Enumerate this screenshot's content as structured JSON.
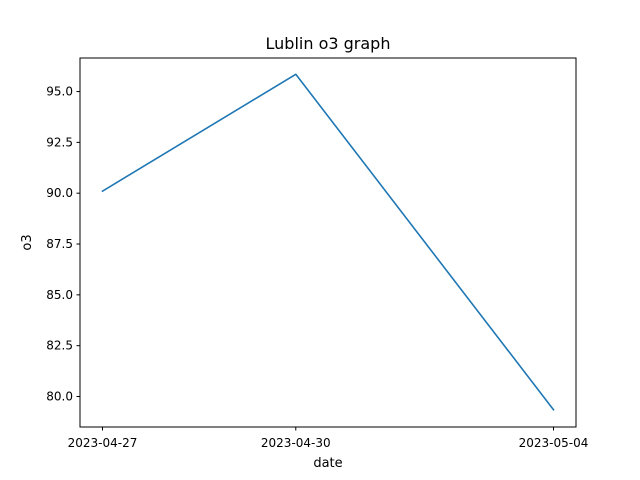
{
  "chart_data": {
    "type": "line",
    "title": "Lublin o3 graph",
    "xlabel": "date",
    "ylabel": "o3",
    "x": [
      "2023-04-27",
      "2023-04-30",
      "2023-05-04"
    ],
    "series": [
      {
        "values": [
          90.1,
          95.85,
          79.35
        ],
        "color": "#1f77b4"
      }
    ],
    "xticks": [
      "2023-04-27",
      "2023-04-30",
      "2023-05-04"
    ],
    "yticks": [
      80.0,
      82.5,
      85.0,
      87.5,
      90.0,
      92.5,
      95.0
    ],
    "ytick_labels": [
      "80.0",
      "82.5",
      "85.0",
      "87.5",
      "90.0",
      "92.5",
      "95.0"
    ],
    "ylim": [
      78.5,
      96.65
    ],
    "grid": false
  }
}
